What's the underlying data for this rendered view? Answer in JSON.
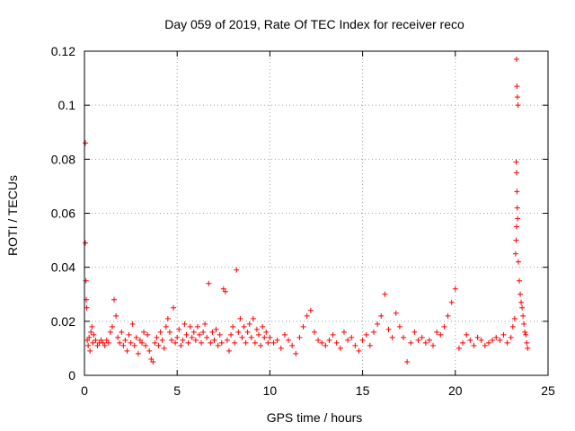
{
  "chart_data": {
    "type": "scatter",
    "title": "Day 059 of 2019, Rate Of TEC Index for receiver reco",
    "xlabel": "GPS time / hours",
    "ylabel": "ROTI / TECUs",
    "xlim": [
      0,
      25
    ],
    "ylim": [
      0,
      0.12
    ],
    "xticks": [
      0,
      5,
      10,
      15,
      20,
      25
    ],
    "xtick_labels": [
      "0",
      "5",
      "10",
      "15",
      "20",
      "25"
    ],
    "yticks": [
      0,
      0.02,
      0.04,
      0.06,
      0.08,
      0.1,
      0.12
    ],
    "ytick_labels": [
      "0",
      "0.02",
      "0.04",
      "0.06",
      "0.08",
      "0.1",
      "0.12"
    ],
    "grid": true,
    "marker": "+",
    "color": "#ff0000",
    "series": [
      {
        "points": [
          [
            0.05,
            0.086
          ],
          [
            0.05,
            0.049
          ],
          [
            0.08,
            0.035
          ],
          [
            0.1,
            0.028
          ],
          [
            0.12,
            0.025
          ],
          [
            0.15,
            0.013
          ],
          [
            0.2,
            0.011
          ],
          [
            0.25,
            0.014
          ],
          [
            0.3,
            0.009
          ],
          [
            0.35,
            0.016
          ],
          [
            0.4,
            0.018
          ],
          [
            0.45,
            0.012
          ],
          [
            0.5,
            0.015
          ],
          [
            0.6,
            0.013
          ],
          [
            0.7,
            0.011
          ],
          [
            0.8,
            0.012
          ],
          [
            0.9,
            0.013
          ],
          [
            1.0,
            0.012
          ],
          [
            1.1,
            0.011
          ],
          [
            1.2,
            0.013
          ],
          [
            1.3,
            0.012
          ],
          [
            1.4,
            0.016
          ],
          [
            1.5,
            0.018
          ],
          [
            1.6,
            0.028
          ],
          [
            1.7,
            0.022
          ],
          [
            1.8,
            0.014
          ],
          [
            1.9,
            0.012
          ],
          [
            2.0,
            0.016
          ],
          [
            2.1,
            0.011
          ],
          [
            2.2,
            0.013
          ],
          [
            2.3,
            0.009
          ],
          [
            2.4,
            0.015
          ],
          [
            2.5,
            0.012
          ],
          [
            2.6,
            0.019
          ],
          [
            2.7,
            0.011
          ],
          [
            2.8,
            0.014
          ],
          [
            2.9,
            0.008
          ],
          [
            3.0,
            0.013
          ],
          [
            3.1,
            0.012
          ],
          [
            3.2,
            0.016
          ],
          [
            3.3,
            0.011
          ],
          [
            3.4,
            0.015
          ],
          [
            3.5,
            0.009
          ],
          [
            3.6,
            0.006
          ],
          [
            3.7,
            0.005
          ],
          [
            3.8,
            0.012
          ],
          [
            3.9,
            0.014
          ],
          [
            4.0,
            0.011
          ],
          [
            4.1,
            0.016
          ],
          [
            4.2,
            0.013
          ],
          [
            4.3,
            0.01
          ],
          [
            4.4,
            0.018
          ],
          [
            4.5,
            0.021
          ],
          [
            4.6,
            0.016
          ],
          [
            4.7,
            0.013
          ],
          [
            4.8,
            0.025
          ],
          [
            4.9,
            0.012
          ],
          [
            5.0,
            0.014
          ],
          [
            5.1,
            0.017
          ],
          [
            5.2,
            0.011
          ],
          [
            5.3,
            0.013
          ],
          [
            5.4,
            0.019
          ],
          [
            5.5,
            0.015
          ],
          [
            5.6,
            0.012
          ],
          [
            5.7,
            0.018
          ],
          [
            5.8,
            0.014
          ],
          [
            5.9,
            0.016
          ],
          [
            6.0,
            0.013
          ],
          [
            6.1,
            0.018
          ],
          [
            6.2,
            0.015
          ],
          [
            6.3,
            0.012
          ],
          [
            6.4,
            0.016
          ],
          [
            6.5,
            0.019
          ],
          [
            6.6,
            0.014
          ],
          [
            6.7,
            0.034
          ],
          [
            6.8,
            0.012
          ],
          [
            6.9,
            0.016
          ],
          [
            7.0,
            0.013
          ],
          [
            7.1,
            0.017
          ],
          [
            7.2,
            0.011
          ],
          [
            7.3,
            0.015
          ],
          [
            7.4,
            0.012
          ],
          [
            7.5,
            0.032
          ],
          [
            7.6,
            0.031
          ],
          [
            7.7,
            0.013
          ],
          [
            7.8,
            0.009
          ],
          [
            7.9,
            0.015
          ],
          [
            8.0,
            0.018
          ],
          [
            8.1,
            0.012
          ],
          [
            8.2,
            0.039
          ],
          [
            8.3,
            0.016
          ],
          [
            8.4,
            0.021
          ],
          [
            8.5,
            0.014
          ],
          [
            8.6,
            0.018
          ],
          [
            8.7,
            0.012
          ],
          [
            8.8,
            0.016
          ],
          [
            8.9,
            0.019
          ],
          [
            9.0,
            0.014
          ],
          [
            9.1,
            0.021
          ],
          [
            9.2,
            0.012
          ],
          [
            9.3,
            0.017
          ],
          [
            9.4,
            0.015
          ],
          [
            9.5,
            0.011
          ],
          [
            9.6,
            0.018
          ],
          [
            9.7,
            0.014
          ],
          [
            9.8,
            0.016
          ],
          [
            9.9,
            0.012
          ],
          [
            10.0,
            0.014
          ],
          [
            10.2,
            0.012
          ],
          [
            10.4,
            0.013
          ],
          [
            10.6,
            0.01
          ],
          [
            10.8,
            0.015
          ],
          [
            11.0,
            0.013
          ],
          [
            11.2,
            0.011
          ],
          [
            11.4,
            0.008
          ],
          [
            11.6,
            0.014
          ],
          [
            11.8,
            0.018
          ],
          [
            12.0,
            0.022
          ],
          [
            12.2,
            0.024
          ],
          [
            12.4,
            0.016
          ],
          [
            12.6,
            0.013
          ],
          [
            12.8,
            0.012
          ],
          [
            13.0,
            0.011
          ],
          [
            13.2,
            0.013
          ],
          [
            13.4,
            0.015
          ],
          [
            13.6,
            0.012
          ],
          [
            13.8,
            0.01
          ],
          [
            14.0,
            0.016
          ],
          [
            14.2,
            0.013
          ],
          [
            14.4,
            0.014
          ],
          [
            14.6,
            0.011
          ],
          [
            14.8,
            0.009
          ],
          [
            15.0,
            0.013
          ],
          [
            15.2,
            0.015
          ],
          [
            15.4,
            0.011
          ],
          [
            15.6,
            0.016
          ],
          [
            15.8,
            0.019
          ],
          [
            16.0,
            0.022
          ],
          [
            16.2,
            0.03
          ],
          [
            16.4,
            0.017
          ],
          [
            16.6,
            0.014
          ],
          [
            16.8,
            0.023
          ],
          [
            17.0,
            0.018
          ],
          [
            17.2,
            0.014
          ],
          [
            17.4,
            0.005
          ],
          [
            17.6,
            0.012
          ],
          [
            17.8,
            0.016
          ],
          [
            18.0,
            0.013
          ],
          [
            18.2,
            0.014
          ],
          [
            18.4,
            0.012
          ],
          [
            18.6,
            0.013
          ],
          [
            18.8,
            0.011
          ],
          [
            19.0,
            0.016
          ],
          [
            19.2,
            0.015
          ],
          [
            19.4,
            0.018
          ],
          [
            19.6,
            0.022
          ],
          [
            19.8,
            0.027
          ],
          [
            20.0,
            0.032
          ],
          [
            20.2,
            0.01
          ],
          [
            20.4,
            0.012
          ],
          [
            20.6,
            0.015
          ],
          [
            20.8,
            0.013
          ],
          [
            21.0,
            0.011
          ],
          [
            21.2,
            0.014
          ],
          [
            21.4,
            0.013
          ],
          [
            21.6,
            0.011
          ],
          [
            21.8,
            0.012
          ],
          [
            22.0,
            0.013
          ],
          [
            22.2,
            0.014
          ],
          [
            22.4,
            0.013
          ],
          [
            22.6,
            0.015
          ],
          [
            22.8,
            0.012
          ],
          [
            23.0,
            0.014
          ],
          [
            23.1,
            0.018
          ],
          [
            23.2,
            0.021
          ],
          [
            23.25,
            0.045
          ],
          [
            23.3,
            0.117
          ],
          [
            23.32,
            0.107
          ],
          [
            23.35,
            0.103
          ],
          [
            23.38,
            0.1
          ],
          [
            23.28,
            0.079
          ],
          [
            23.3,
            0.075
          ],
          [
            23.32,
            0.068
          ],
          [
            23.34,
            0.062
          ],
          [
            23.36,
            0.058
          ],
          [
            23.3,
            0.055
          ],
          [
            23.28,
            0.05
          ],
          [
            23.4,
            0.042
          ],
          [
            23.45,
            0.035
          ],
          [
            23.5,
            0.03
          ],
          [
            23.55,
            0.027
          ],
          [
            23.6,
            0.025
          ],
          [
            23.65,
            0.022
          ],
          [
            23.7,
            0.019
          ],
          [
            23.75,
            0.016
          ],
          [
            23.8,
            0.015
          ],
          [
            23.85,
            0.012
          ],
          [
            23.9,
            0.01
          ]
        ]
      }
    ]
  }
}
